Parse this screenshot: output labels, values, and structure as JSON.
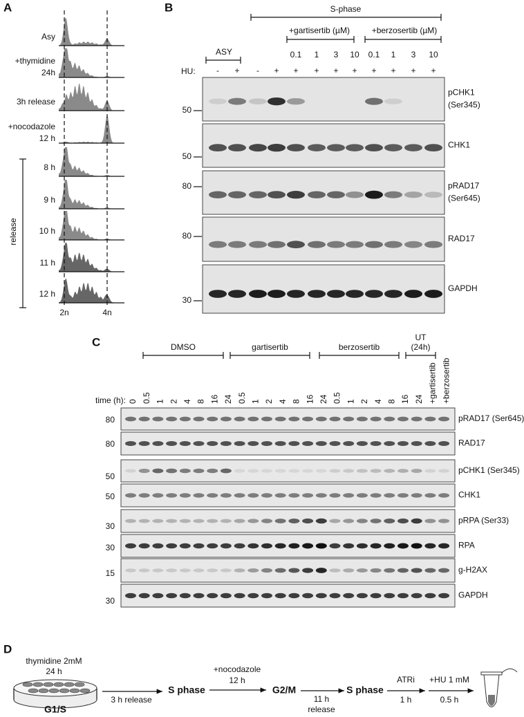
{
  "panel_a": {
    "label": "A",
    "rows": [
      [
        "Asy"
      ],
      [
        "+thymidine",
        "24h"
      ],
      [
        "3h release"
      ],
      [
        "+nocodazole",
        "12 h"
      ],
      [
        "8 h"
      ],
      [
        "9 h"
      ],
      [
        "10 h"
      ],
      [
        "11 h"
      ],
      [
        "12 h"
      ]
    ],
    "bracket_label": "release",
    "x_labels": [
      "2n",
      "4n"
    ]
  },
  "panel_b": {
    "label": "B",
    "phase": "S-phase",
    "groups": [
      "+gartisertib (µM)",
      "+berzosertib (µM)"
    ],
    "asy": "ASY",
    "doses": [
      "0.1",
      "1",
      "3",
      "10",
      "0.1",
      "1",
      "3",
      "10"
    ],
    "hu_label": "HU:",
    "hu": [
      "-",
      "+",
      "-",
      "+",
      "+",
      "+",
      "+",
      "+",
      "+",
      "+",
      "+",
      "+"
    ],
    "blots": [
      {
        "name": [
          "pCHK1",
          "(Ser345)"
        ],
        "mw": "50"
      },
      {
        "name": [
          "CHK1"
        ],
        "mw": "50"
      },
      {
        "name": [
          "pRAD17",
          "(Ser645)"
        ],
        "mw": "80"
      },
      {
        "name": [
          "RAD17"
        ],
        "mw": "80"
      },
      {
        "name": [
          "GAPDH"
        ],
        "mw": "30"
      }
    ]
  },
  "panel_c": {
    "label": "C",
    "groups": [
      [
        "DMSO"
      ],
      [
        "gartisertib"
      ],
      [
        "berzosertib"
      ],
      [
        "UT",
        "(24h)"
      ]
    ],
    "time_label": "time (h):",
    "lanes": [
      "0",
      "0.5",
      "1",
      "2",
      "4",
      "8",
      "16",
      "24",
      "0.5",
      "1",
      "2",
      "4",
      "8",
      "16",
      "24",
      "0.5",
      "1",
      "2",
      "4",
      "8",
      "16",
      "24",
      "+gartisertib",
      "+berzosertib"
    ],
    "blots": [
      {
        "name": "pRAD17 (Ser645)",
        "mw": "80"
      },
      {
        "name": "RAD17",
        "mw": "80"
      },
      {
        "name": "pCHK1 (Ser345)",
        "mw": "50"
      },
      {
        "name": "CHK1",
        "mw": "50"
      },
      {
        "name": "pRPA (Ser33)",
        "mw": "30"
      },
      {
        "name": "RPA",
        "mw": "30"
      },
      {
        "name": "g-H2AX",
        "mw": "15"
      },
      {
        "name": "GAPDH",
        "mw": "30"
      }
    ]
  },
  "panel_d": {
    "label": "D",
    "dish": [
      "thymidine 2mM",
      "24 h"
    ],
    "g1s": "G1/S",
    "step1": "3 h release",
    "s1": "S phase",
    "noc": [
      "+nocodazole",
      "12 h"
    ],
    "g2m": "G2/M",
    "step3": [
      "11 h",
      "release"
    ],
    "s2": "S phase",
    "atri": [
      "ATRi",
      "1 h"
    ],
    "hu": [
      "+HU 1 mM",
      "0.5 h"
    ]
  }
}
